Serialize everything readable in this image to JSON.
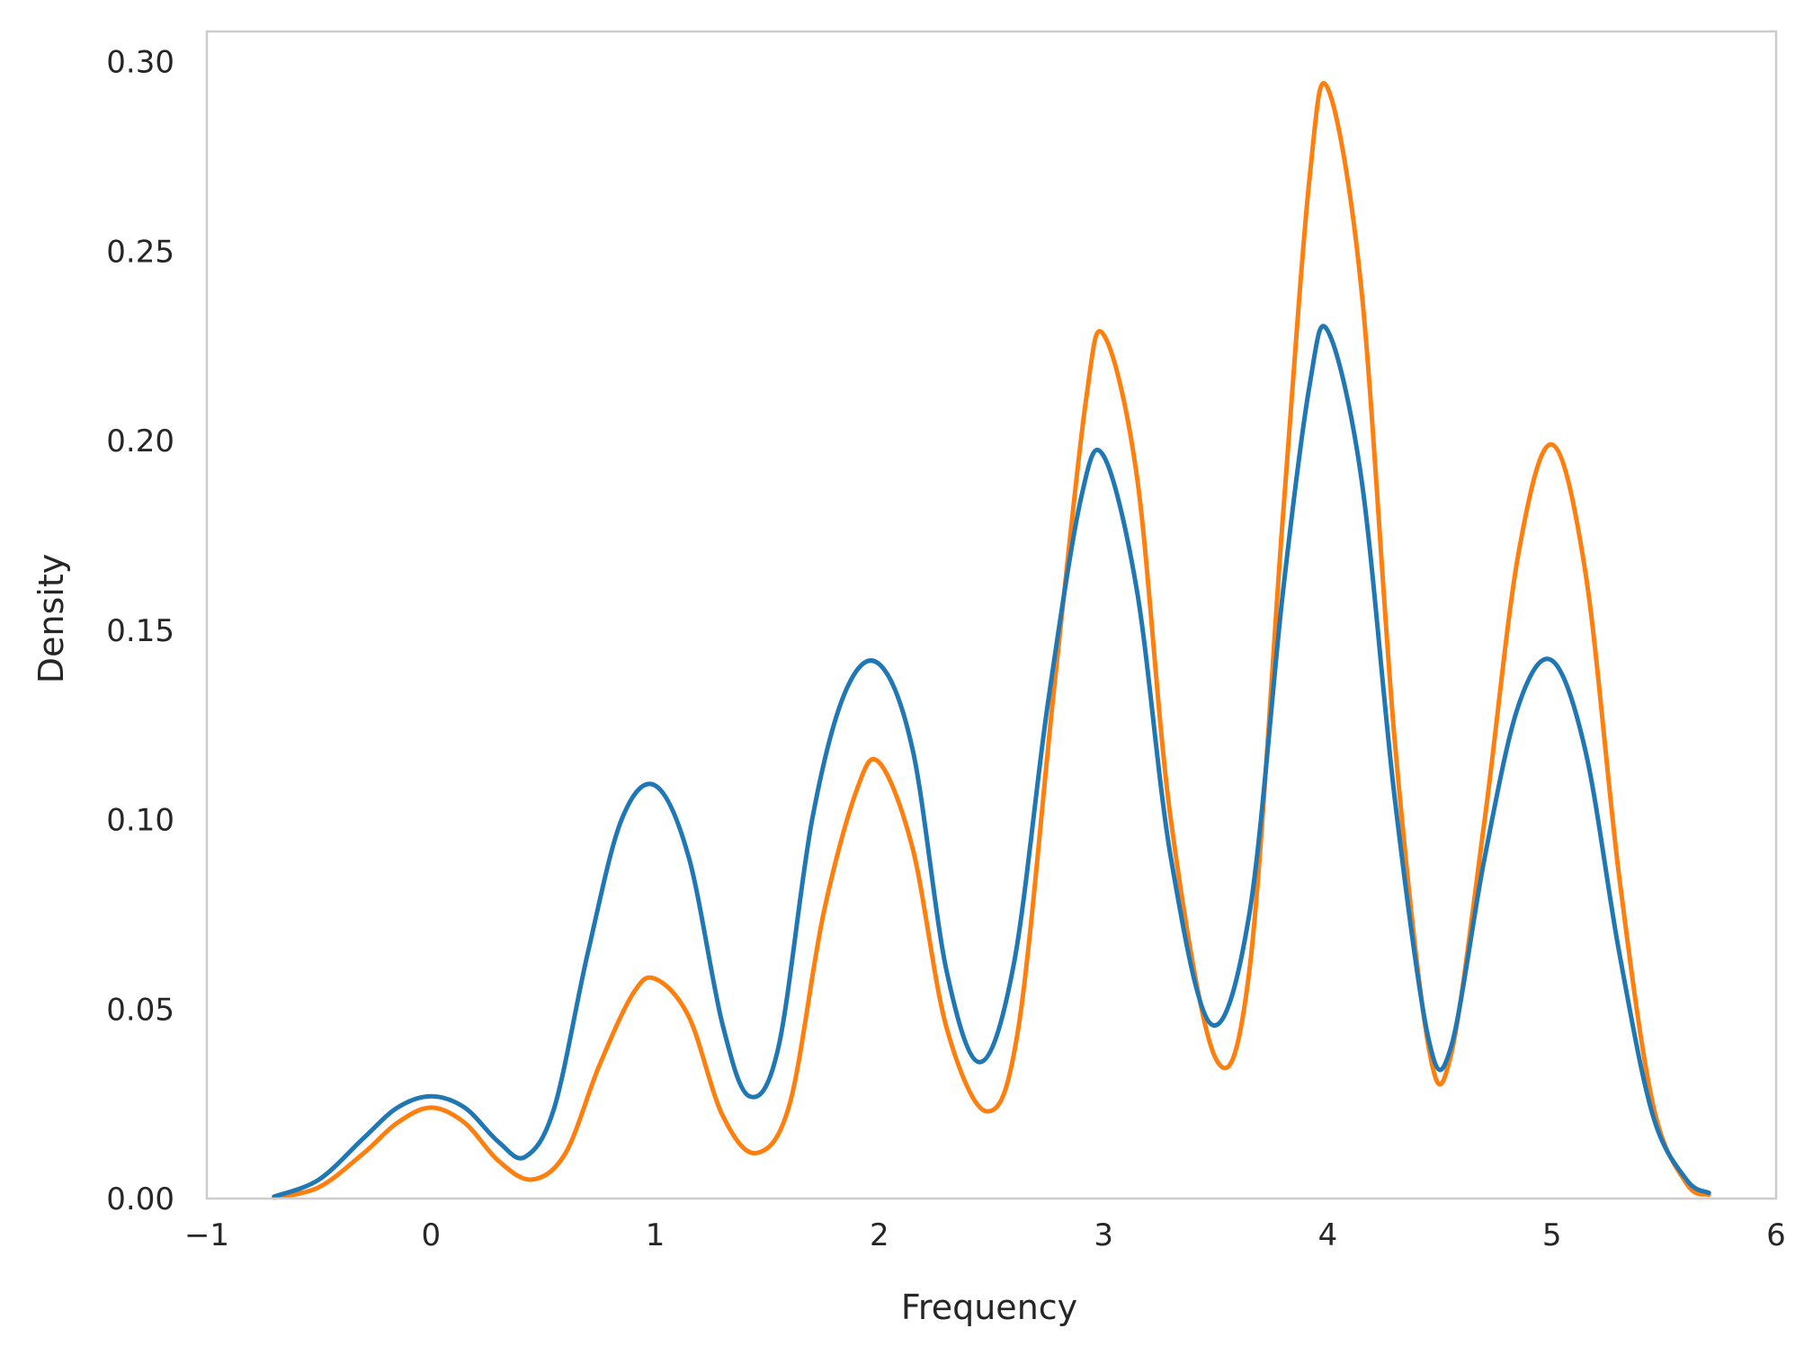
{
  "chart_data": {
    "type": "line",
    "title": "",
    "xlabel": "Frequency",
    "ylabel": "Density",
    "xlim": [
      -1,
      6
    ],
    "ylim": [
      0,
      0.308
    ],
    "x_ticks": [
      -1,
      0,
      1,
      2,
      3,
      4,
      5,
      6
    ],
    "x_tick_labels": [
      "−1",
      "0",
      "1",
      "2",
      "3",
      "4",
      "5",
      "6"
    ],
    "y_ticks": [
      0,
      0.05,
      0.1,
      0.15,
      0.2,
      0.25,
      0.3
    ],
    "y_tick_labels": [
      "0.00",
      "0.05",
      "0.10",
      "0.15",
      "0.20",
      "0.25",
      "0.30"
    ],
    "grid": false,
    "series": [
      {
        "name": "series-blue",
        "color": "#1f77b4",
        "x": [
          -0.7,
          -0.5,
          -0.3,
          -0.15,
          0,
          0.15,
          0.3,
          0.42,
          0.55,
          0.7,
          0.85,
          1.0,
          1.15,
          1.3,
          1.42,
          1.55,
          1.7,
          1.85,
          2.0,
          2.15,
          2.3,
          2.45,
          2.6,
          2.75,
          2.9,
          3.0,
          3.15,
          3.3,
          3.48,
          3.65,
          3.8,
          3.92,
          4.0,
          4.15,
          4.3,
          4.45,
          4.55,
          4.7,
          4.85,
          5.0,
          5.15,
          5.3,
          5.45,
          5.6,
          5.7
        ],
        "y": [
          0.0005,
          0.005,
          0.016,
          0.024,
          0.027,
          0.024,
          0.015,
          0.011,
          0.024,
          0.065,
          0.1,
          0.109,
          0.09,
          0.046,
          0.027,
          0.04,
          0.1,
          0.134,
          0.141,
          0.118,
          0.06,
          0.036,
          0.062,
          0.13,
          0.185,
          0.196,
          0.16,
          0.09,
          0.046,
          0.075,
          0.16,
          0.215,
          0.229,
          0.19,
          0.105,
          0.042,
          0.04,
          0.09,
          0.13,
          0.142,
          0.118,
          0.065,
          0.022,
          0.005,
          0.0015
        ]
      },
      {
        "name": "series-orange",
        "color": "#ff7f0e",
        "x": [
          -0.7,
          -0.5,
          -0.3,
          -0.15,
          0,
          0.15,
          0.3,
          0.45,
          0.6,
          0.75,
          0.9,
          1.0,
          1.15,
          1.3,
          1.45,
          1.6,
          1.75,
          1.9,
          2.0,
          2.15,
          2.3,
          2.48,
          2.62,
          2.78,
          2.92,
          3.0,
          3.15,
          3.3,
          3.5,
          3.65,
          3.8,
          3.92,
          4.0,
          4.15,
          4.3,
          4.45,
          4.55,
          4.7,
          4.85,
          5.0,
          5.15,
          5.3,
          5.45,
          5.6,
          5.7
        ],
        "y": [
          0.0002,
          0.003,
          0.012,
          0.02,
          0.024,
          0.02,
          0.01,
          0.005,
          0.012,
          0.035,
          0.054,
          0.058,
          0.048,
          0.022,
          0.012,
          0.025,
          0.075,
          0.108,
          0.115,
          0.092,
          0.045,
          0.023,
          0.045,
          0.135,
          0.21,
          0.228,
          0.19,
          0.1,
          0.037,
          0.06,
          0.18,
          0.27,
          0.293,
          0.24,
          0.12,
          0.04,
          0.038,
          0.1,
          0.17,
          0.199,
          0.165,
          0.085,
          0.025,
          0.004,
          0.001
        ]
      }
    ]
  }
}
